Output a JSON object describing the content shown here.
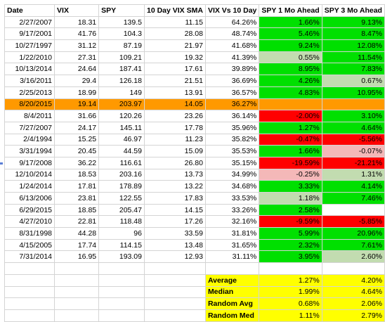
{
  "headers": [
    "Date",
    "VIX",
    "SPY",
    "10 Day VIX SMA",
    "VIX Vs 10 Day",
    "SPY 1 Mo Ahead",
    "SPY 3 Mo Ahead"
  ],
  "colors": {
    "green": "#00e000",
    "light_green": "#c2dcb0",
    "red": "#ff0000",
    "light_red": "#f4b8b8",
    "mid_red": "#ee7777",
    "orange": "#ff9900",
    "yellow": "#ffff00",
    "grid": "#d4d4d4"
  },
  "rows": [
    {
      "date": "2/27/2007",
      "vix": "18.31",
      "spy": "139.5",
      "sma": "11.15",
      "vs": "64.26%",
      "m1": "1.66%",
      "m1c": "green",
      "m3": "9.13%",
      "m3c": "green"
    },
    {
      "date": "9/17/2001",
      "vix": "41.76",
      "spy": "104.3",
      "sma": "28.08",
      "vs": "48.74%",
      "m1": "5.46%",
      "m1c": "green",
      "m3": "8.47%",
      "m3c": "green"
    },
    {
      "date": "10/27/1997",
      "vix": "31.12",
      "spy": "87.19",
      "sma": "21.97",
      "vs": "41.68%",
      "m1": "9.24%",
      "m1c": "green",
      "m3": "12.08%",
      "m3c": "green"
    },
    {
      "date": "1/22/2010",
      "vix": "27.31",
      "spy": "109.21",
      "sma": "19.32",
      "vs": "41.39%",
      "m1": "0.55%",
      "m1c": "light_green",
      "m3": "11.54%",
      "m3c": "green"
    },
    {
      "date": "10/13/2014",
      "vix": "24.64",
      "spy": "187.41",
      "sma": "17.61",
      "vs": "39.89%",
      "m1": "8.95%",
      "m1c": "green",
      "m3": "7.83%",
      "m3c": "green"
    },
    {
      "date": "3/16/2011",
      "vix": "29.4",
      "spy": "126.18",
      "sma": "21.51",
      "vs": "36.69%",
      "m1": "4.26%",
      "m1c": "green",
      "m3": "0.67%",
      "m3c": "light_green"
    },
    {
      "date": "2/25/2013",
      "vix": "18.99",
      "spy": "149",
      "sma": "13.91",
      "vs": "36.57%",
      "m1": "4.83%",
      "m1c": "green",
      "m3": "10.95%",
      "m3c": "green"
    },
    {
      "date": "8/20/2015",
      "vix": "19.14",
      "spy": "203.97",
      "sma": "14.05",
      "vs": "36.27%",
      "m1": "",
      "m1c": "",
      "m3": "",
      "m3c": "",
      "highlight": true
    },
    {
      "date": "8/4/2011",
      "vix": "31.66",
      "spy": "120.26",
      "sma": "23.26",
      "vs": "36.14%",
      "m1": "-2.00%",
      "m1c": "red",
      "m3": "3.10%",
      "m3c": "green"
    },
    {
      "date": "7/27/2007",
      "vix": "24.17",
      "spy": "145.11",
      "sma": "17.78",
      "vs": "35.96%",
      "m1": "1.27%",
      "m1c": "green",
      "m3": "4.64%",
      "m3c": "green"
    },
    {
      "date": "2/4/1994",
      "vix": "15.25",
      "spy": "46.97",
      "sma": "11.23",
      "vs": "35.82%",
      "m1": "-0.47%",
      "m1c": "red",
      "m3": "-5.56%",
      "m3c": "red"
    },
    {
      "date": "3/31/1994",
      "vix": "20.45",
      "spy": "44.59",
      "sma": "15.09",
      "vs": "35.53%",
      "m1": "1.66%",
      "m1c": "green",
      "m3": "-0.07%",
      "m3c": "light_red"
    },
    {
      "date": "9/17/2008",
      "vix": "36.22",
      "spy": "116.61",
      "sma": "26.80",
      "vs": "35.15%",
      "m1": "-19.59%",
      "m1c": "red",
      "m3": "-21.21%",
      "m3c": "red"
    },
    {
      "date": "12/10/2014",
      "vix": "18.53",
      "spy": "203.16",
      "sma": "13.73",
      "vs": "34.99%",
      "m1": "-0.25%",
      "m1c": "light_red",
      "m3": "1.31%",
      "m3c": "light_green"
    },
    {
      "date": "1/24/2014",
      "vix": "17.81",
      "spy": "178.89",
      "sma": "13.22",
      "vs": "34.68%",
      "m1": "3.33%",
      "m1c": "green",
      "m3": "4.14%",
      "m3c": "green"
    },
    {
      "date": "6/13/2006",
      "vix": "23.81",
      "spy": "122.55",
      "sma": "17.83",
      "vs": "33.53%",
      "m1": "1.18%",
      "m1c": "light_green",
      "m3": "7.46%",
      "m3c": "green"
    },
    {
      "date": "6/29/2015",
      "vix": "18.85",
      "spy": "205.47",
      "sma": "14.15",
      "vs": "33.26%",
      "m1": "2.58%",
      "m1c": "green",
      "m3": "",
      "m3c": ""
    },
    {
      "date": "4/27/2010",
      "vix": "22.81",
      "spy": "118.48",
      "sma": "17.26",
      "vs": "32.16%",
      "m1": "-9.59%",
      "m1c": "red",
      "m3": "-5.85%",
      "m3c": "red"
    },
    {
      "date": "8/31/1998",
      "vix": "44.28",
      "spy": "96",
      "sma": "33.59",
      "vs": "31.81%",
      "m1": "5.99%",
      "m1c": "green",
      "m3": "20.96%",
      "m3c": "green"
    },
    {
      "date": "4/15/2005",
      "vix": "17.74",
      "spy": "114.15",
      "sma": "13.48",
      "vs": "31.65%",
      "m1": "2.32%",
      "m1c": "green",
      "m3": "7.61%",
      "m3c": "green"
    },
    {
      "date": "7/31/2014",
      "vix": "16.95",
      "spy": "193.09",
      "sma": "12.93",
      "vs": "31.11%",
      "m1": "3.95%",
      "m1c": "green",
      "m3": "2.60%",
      "m3c": "light_green"
    }
  ],
  "summary": [
    {
      "label": "Average",
      "m1": "1.27%",
      "m3": "4.20%"
    },
    {
      "label": "Median",
      "m1": "1.99%",
      "m3": "4.64%"
    },
    {
      "label": "Random Avg",
      "m1": "0.68%",
      "m3": "2.06%"
    },
    {
      "label": "Random Med",
      "m1": "1.11%",
      "m3": "2.79%"
    }
  ]
}
